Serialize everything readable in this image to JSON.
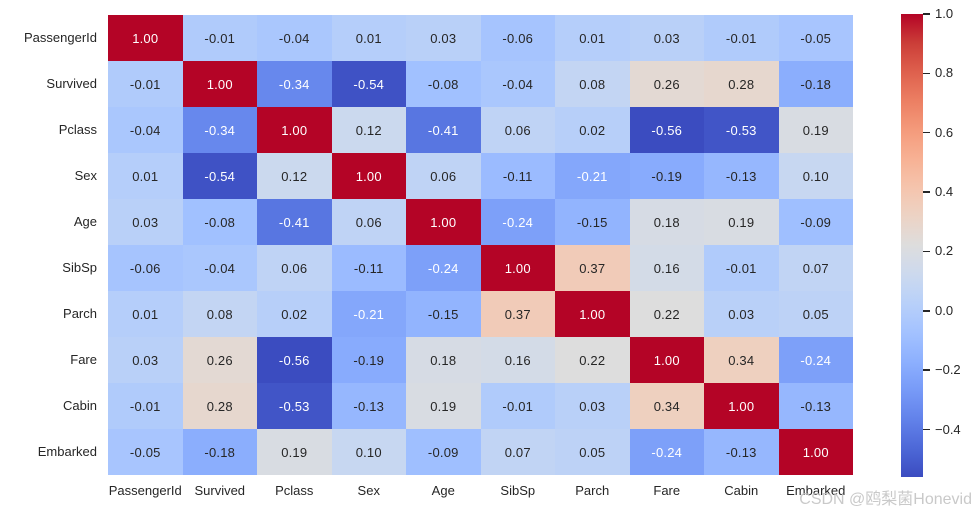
{
  "watermark": "CSDN @鸥梨菌Honevid",
  "chart_data": {
    "type": "heatmap",
    "title": "",
    "xlabel": "",
    "ylabel": "",
    "colormap": "coolwarm",
    "vmin": -0.56,
    "vmax": 1.0,
    "grid": false,
    "legend_position": "right-colorbar",
    "annotation_format": ".2f",
    "annotation_colors": {
      "dark": "#262626",
      "light": "#ffffff"
    },
    "background": "#ffffff",
    "categories": [
      "PassengerId",
      "Survived",
      "Pclass",
      "Sex",
      "Age",
      "SibSp",
      "Parch",
      "Fare",
      "Cabin",
      "Embarked"
    ],
    "matrix": [
      [
        1.0,
        -0.01,
        -0.04,
        0.01,
        0.03,
        -0.06,
        0.01,
        0.03,
        -0.01,
        -0.05
      ],
      [
        -0.01,
        1.0,
        -0.34,
        -0.54,
        -0.08,
        -0.04,
        0.08,
        0.26,
        0.28,
        -0.18
      ],
      [
        -0.04,
        -0.34,
        1.0,
        0.12,
        -0.41,
        0.06,
        0.02,
        -0.56,
        -0.53,
        0.19
      ],
      [
        0.01,
        -0.54,
        0.12,
        1.0,
        0.06,
        -0.11,
        -0.21,
        -0.19,
        -0.13,
        0.1
      ],
      [
        0.03,
        -0.08,
        -0.41,
        0.06,
        1.0,
        -0.24,
        -0.15,
        0.18,
        0.19,
        -0.09
      ],
      [
        -0.06,
        -0.04,
        0.06,
        -0.11,
        -0.24,
        1.0,
        0.37,
        0.16,
        -0.01,
        0.07
      ],
      [
        0.01,
        0.08,
        0.02,
        -0.21,
        -0.15,
        0.37,
        1.0,
        0.22,
        0.03,
        0.05
      ],
      [
        0.03,
        0.26,
        -0.56,
        -0.19,
        0.18,
        0.16,
        0.22,
        1.0,
        0.34,
        -0.24
      ],
      [
        -0.01,
        0.28,
        -0.53,
        -0.13,
        0.19,
        -0.01,
        0.03,
        0.34,
        1.0,
        -0.13
      ],
      [
        -0.05,
        -0.18,
        0.19,
        0.1,
        -0.09,
        0.07,
        0.05,
        -0.24,
        -0.13,
        1.0
      ]
    ],
    "colorbar_ticks": [
      1.0,
      0.8,
      0.6,
      0.4,
      0.2,
      0.0,
      -0.2,
      -0.4
    ],
    "colorbar_tick_labels": [
      "1.0",
      "0.8",
      "0.6",
      "0.4",
      "0.2",
      "0.0",
      "−0.2",
      "−0.4"
    ]
  }
}
